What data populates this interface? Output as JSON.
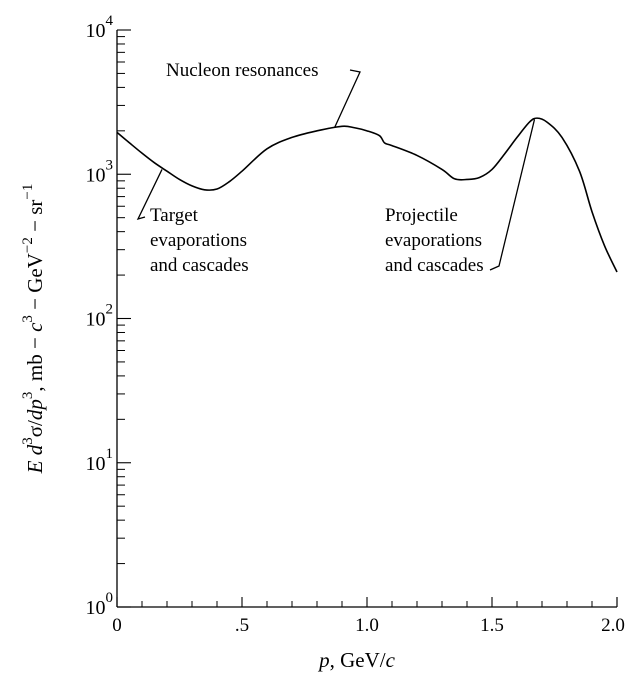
{
  "chart_data": {
    "type": "line",
    "title": "",
    "xlabel_parts": [
      "p",
      ", GeV/",
      "c"
    ],
    "ylabel_parts": [
      {
        "t": "E d",
        "i": true
      },
      {
        "t": "3",
        "sup": true
      },
      {
        "t": "σ/",
        "i": false
      },
      {
        "t": "dp",
        "i": true
      },
      {
        "t": "3",
        "sup": true
      },
      {
        "t": ", mb − ",
        "i": false
      },
      {
        "t": "c",
        "i": true
      },
      {
        "t": "3",
        "sup": true
      },
      {
        "t": " − GeV",
        "i": false
      },
      {
        "t": "−2",
        "sup": true
      },
      {
        "t": " − sr",
        "i": false
      },
      {
        "t": "−1",
        "sup": true
      }
    ],
    "xlim": [
      0,
      2.0
    ],
    "ylim_log10": [
      0,
      4
    ],
    "log_y": true,
    "grid": false,
    "x_ticks": [
      {
        "v": 0,
        "label": "0"
      },
      {
        "v": 0.5,
        "label": ".5"
      },
      {
        "v": 1.0,
        "label": "1.0"
      },
      {
        "v": 1.5,
        "label": "1.5"
      },
      {
        "v": 2.0,
        "label": "2.0"
      }
    ],
    "y_ticks": [
      {
        "base": "10",
        "exp": "0",
        "v": 1
      },
      {
        "base": "10",
        "exp": "1",
        "v": 10
      },
      {
        "base": "10",
        "exp": "2",
        "v": 100
      },
      {
        "base": "10",
        "exp": "3",
        "v": 1000
      },
      {
        "base": "10",
        "exp": "4",
        "v": 10000
      }
    ],
    "series": [
      {
        "points": [
          [
            0.0,
            1950
          ],
          [
            0.05,
            1650
          ],
          [
            0.1,
            1400
          ],
          [
            0.15,
            1200
          ],
          [
            0.2,
            1050
          ],
          [
            0.25,
            920
          ],
          [
            0.3,
            830
          ],
          [
            0.35,
            780
          ],
          [
            0.4,
            790
          ],
          [
            0.45,
            890
          ],
          [
            0.5,
            1050
          ],
          [
            0.6,
            1500
          ],
          [
            0.7,
            1800
          ],
          [
            0.8,
            2000
          ],
          [
            0.9,
            2150
          ],
          [
            0.95,
            2100
          ],
          [
            1.0,
            2000
          ],
          [
            1.05,
            1850
          ],
          [
            1.07,
            1650
          ],
          [
            1.1,
            1580
          ],
          [
            1.2,
            1350
          ],
          [
            1.3,
            1080
          ],
          [
            1.35,
            930
          ],
          [
            1.4,
            920
          ],
          [
            1.45,
            950
          ],
          [
            1.5,
            1080
          ],
          [
            1.55,
            1380
          ],
          [
            1.6,
            1800
          ],
          [
            1.65,
            2300
          ],
          [
            1.68,
            2450
          ],
          [
            1.72,
            2300
          ],
          [
            1.78,
            1800
          ],
          [
            1.85,
            1050
          ],
          [
            1.9,
            550
          ],
          [
            1.95,
            320
          ],
          [
            2.0,
            210
          ]
        ]
      }
    ],
    "annotations": [
      {
        "text_lines": [
          "Nucleon resonances"
        ],
        "x": 0.87,
        "y": 2100
      },
      {
        "text_lines": [
          "Target",
          "evaporations",
          "and cascades"
        ],
        "x": 0.18,
        "y": 1080
      },
      {
        "text_lines": [
          "Projectile",
          "evaporations",
          "and cascades"
        ],
        "x": 1.67,
        "y": 2400
      }
    ]
  }
}
